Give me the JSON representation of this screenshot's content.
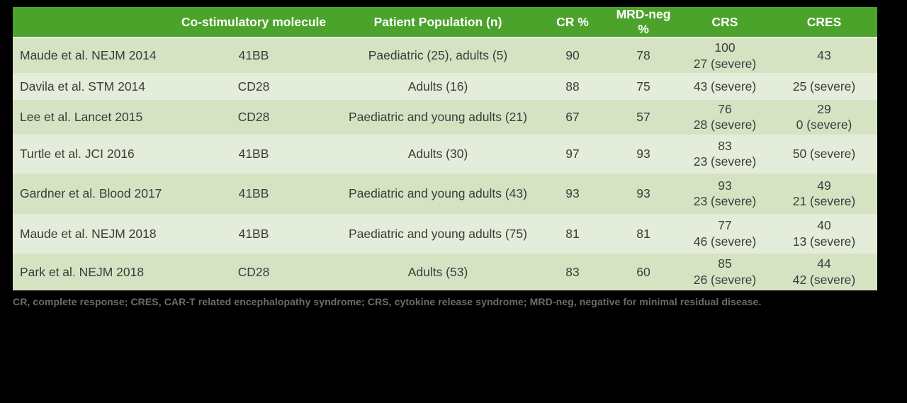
{
  "colors": {
    "page_background": "#000000",
    "header_background": "#4ca32b",
    "header_text": "#ffffff",
    "row_odd_background": "#d5e3c3",
    "row_even_background": "#e3edd9",
    "body_text": "#3c3c3c",
    "footnote_text": "#6c6c6c"
  },
  "table": {
    "headers": [
      "",
      "Co-stimulatory molecule",
      "Patient Population (n)",
      "CR %",
      "MRD-neg %",
      "CRS",
      "CRES"
    ],
    "rows": [
      {
        "study": "Maude et al. NEJM 2014",
        "molecule": "41BB",
        "population": "Paediatric (25), adults (5)",
        "cr": "90",
        "mrd": "78",
        "crs": [
          "100",
          "27 (severe)"
        ],
        "cres": [
          "43"
        ]
      },
      {
        "study": "Davila et al. STM 2014",
        "molecule": "CD28",
        "population": "Adults (16)",
        "cr": "88",
        "mrd": "75",
        "crs": [
          "43 (severe)"
        ],
        "cres": [
          "25 (severe)"
        ]
      },
      {
        "study": "Lee et al. Lancet 2015",
        "molecule": "CD28",
        "population": "Paediatric and young adults (21)",
        "cr": "67",
        "mrd": "57",
        "crs": [
          "76",
          "28 (severe)"
        ],
        "cres": [
          "29",
          "0 (severe)"
        ]
      },
      {
        "study": "Turtle et al. JCI 2016",
        "molecule": "41BB",
        "population": "Adults (30)",
        "cr": "97",
        "mrd": "93",
        "crs": [
          "83",
          "23 (severe)"
        ],
        "cres": [
          "50 (severe)"
        ]
      },
      {
        "study": "Gardner et al. Blood 2017",
        "molecule": "41BB",
        "population": "Paediatric and young adults (43)",
        "cr": "93",
        "mrd": "93",
        "crs": [
          "93",
          "23 (severe)"
        ],
        "cres": [
          "49",
          "21 (severe)"
        ]
      },
      {
        "study": "Maude et al. NEJM 2018",
        "molecule": "41BB",
        "population": "Paediatric and young adults (75)",
        "cr": "81",
        "mrd": "81",
        "crs": [
          "77",
          "46 (severe)"
        ],
        "cres": [
          "40",
          "13 (severe)"
        ]
      },
      {
        "study": "Park et al. NEJM 2018",
        "molecule": "CD28",
        "population": "Adults (53)",
        "cr": "83",
        "mrd": "60",
        "crs": [
          "85",
          "26 (severe)"
        ],
        "cres": [
          "44",
          "42 (severe)"
        ]
      }
    ]
  },
  "footnote": "CR, complete response; CRES, CAR-T related encephalopathy syndrome; CRS, cytokine release syndrome; MRD-neg, negative for minimal residual disease."
}
